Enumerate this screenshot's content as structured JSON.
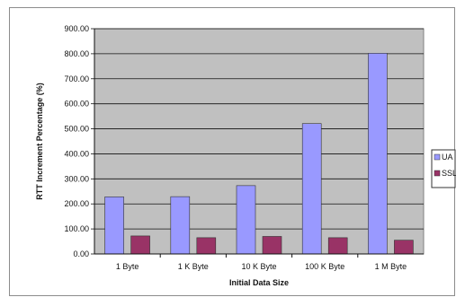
{
  "chart_data": {
    "type": "bar",
    "categories": [
      "1 Byte",
      "1 K Byte",
      "10 K Byte",
      "100 K Byte",
      "1 M Byte"
    ],
    "series": [
      {
        "name": "UA",
        "values": [
          228,
          229,
          273,
          521,
          802
        ],
        "color": "#9999ff"
      },
      {
        "name": "SSL",
        "values": [
          72,
          65,
          70,
          65,
          55
        ],
        "color": "#993366"
      }
    ],
    "title": "",
    "xlabel": "Initial Data Size",
    "ylabel": "RTT Increment Percentage (%)",
    "ylim": [
      0,
      900
    ],
    "yticks": [
      "0.00",
      "100.00",
      "200.00",
      "300.00",
      "400.00",
      "500.00",
      "600.00",
      "700.00",
      "800.00",
      "900.00"
    ],
    "grid": true,
    "legend": "right",
    "plot_background": "#c0c0c0"
  }
}
